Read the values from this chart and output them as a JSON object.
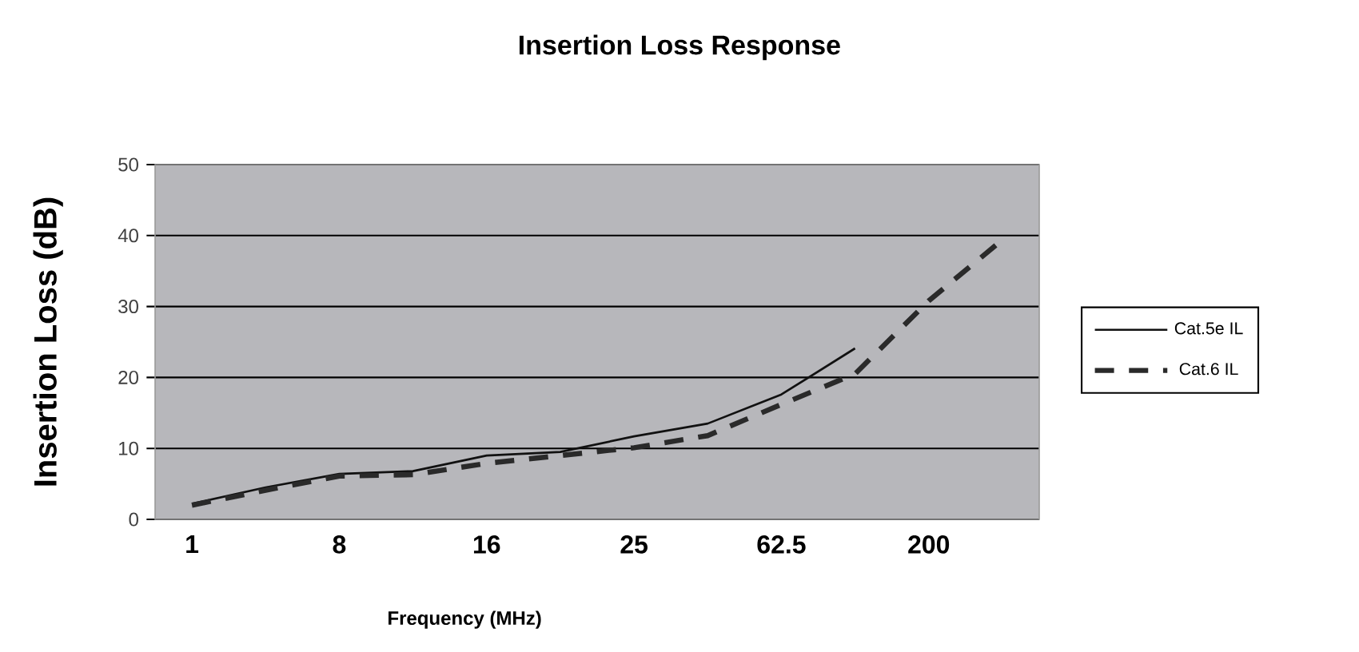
{
  "chart_data": {
    "type": "line",
    "title": "Insertion Loss Response",
    "xlabel": "Frequency (MHz)",
    "ylabel": "Insertion Loss (dB)",
    "categories": [
      "1",
      null,
      "8",
      null,
      "16",
      null,
      "25",
      null,
      "62.5",
      null,
      "200",
      null
    ],
    "ylim": [
      0,
      50
    ],
    "yticks": [
      0,
      10,
      20,
      30,
      40,
      50
    ],
    "grid": "y",
    "legend": "right",
    "marker": "none",
    "series": [
      {
        "name": "Cat.5e IL",
        "color": "#111111",
        "line_style": "solid",
        "values": [
          2.2,
          4.5,
          6.4,
          6.8,
          9.0,
          9.5,
          11.7,
          13.5,
          17.6,
          24.1,
          null,
          null
        ]
      },
      {
        "name": "Cat.6 IL",
        "color": "#2a2a2a",
        "line_style": "dashed",
        "values": [
          2.0,
          4.1,
          6.1,
          6.3,
          7.9,
          9.0,
          10.1,
          11.8,
          16.2,
          20.5,
          30.8,
          39.4
        ]
      }
    ]
  }
}
